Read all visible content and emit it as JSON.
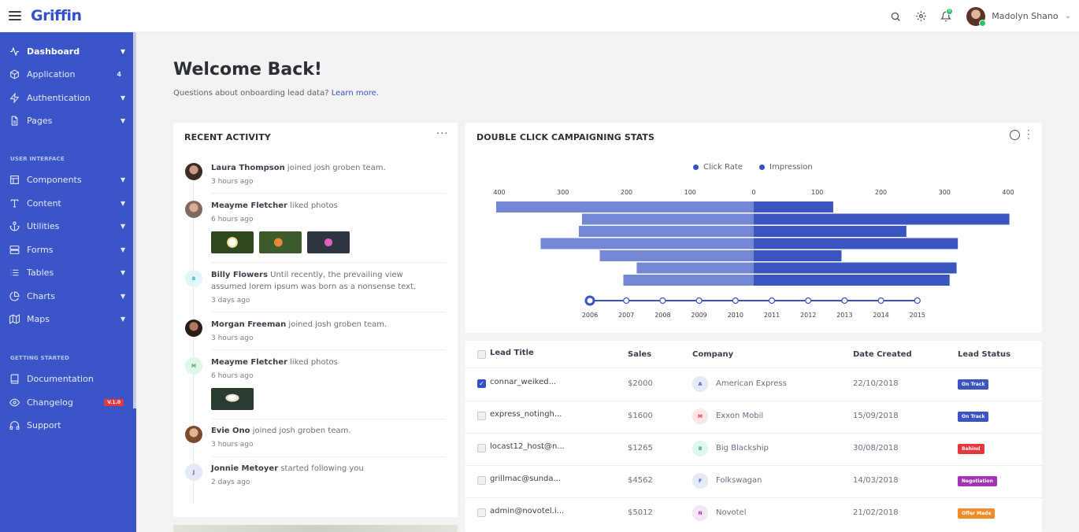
{
  "brand": "Griffin",
  "header": {
    "user_name": "Madolyn Shano",
    "notification_count": "0"
  },
  "sidebar": {
    "items_main": [
      {
        "label": "Dashboard",
        "icon": "activity-icon",
        "badge": ""
      },
      {
        "label": "Application",
        "icon": "box-icon",
        "badge": "4"
      },
      {
        "label": "Authentication",
        "icon": "zap-icon",
        "badge": ""
      },
      {
        "label": "Pages",
        "icon": "file-icon",
        "badge": ""
      }
    ],
    "section_ui": "USER INTERFACE",
    "items_ui": [
      {
        "label": "Components",
        "icon": "layout-icon"
      },
      {
        "label": "Content",
        "icon": "type-icon"
      },
      {
        "label": "Utilities",
        "icon": "anchor-icon"
      },
      {
        "label": "Forms",
        "icon": "server-icon"
      },
      {
        "label": "Tables",
        "icon": "list-icon"
      },
      {
        "label": "Charts",
        "icon": "pie-chart-icon"
      },
      {
        "label": "Maps",
        "icon": "map-icon"
      }
    ],
    "section_start": "GETTING STARTED",
    "items_start": [
      {
        "label": "Documentation",
        "icon": "book-icon",
        "badge": ""
      },
      {
        "label": "Changelog",
        "icon": "eye-icon",
        "badge": "V.1.0"
      },
      {
        "label": "Support",
        "icon": "headphones-icon",
        "badge": ""
      }
    ]
  },
  "main": {
    "title": "Welcome Back!",
    "subtitle": "Questions about onboarding lead data?",
    "subtitle_link": "Learn more."
  },
  "activity": {
    "title": "RECENT ACTIVITY",
    "items": [
      {
        "name": "Laura Thompson",
        "action": "joined josh groben team.",
        "time": "3 hours ago",
        "initial": ""
      },
      {
        "name": "Meayme Fletcher",
        "action": "liked photos",
        "time": "6 hours ago",
        "initial": ""
      },
      {
        "name": "Billy Flowers",
        "action": "Until recently, the prevailing view assumed lorem ipsum was born as a nonsense text.",
        "time": "3 days ago",
        "initial": "B"
      },
      {
        "name": "Morgan Freeman",
        "action": "joined josh groben team.",
        "time": "3 hours ago",
        "initial": ""
      },
      {
        "name": "Meayme Fletcher",
        "action": "liked photos",
        "time": "6 hours ago",
        "initial": "M"
      },
      {
        "name": "Evie Ono",
        "action": "joined josh groben team.",
        "time": "3 hours ago",
        "initial": ""
      },
      {
        "name": "Jonnie Metoyer",
        "action": "started following you",
        "time": "2 days ago",
        "initial": "J"
      }
    ]
  },
  "stats": {
    "title": "DOUBLE CLICK CAMPAIGNING STATS"
  },
  "chart_data": {
    "type": "bar",
    "orientation": "horizontal-butterfly",
    "legend": [
      "Click Rate",
      "Impression"
    ],
    "legend_position": "top-center",
    "ticks_left": [
      "400",
      "300",
      "200",
      "100",
      "0"
    ],
    "ticks_right": [
      "100",
      "200",
      "300",
      "400"
    ],
    "xlim": [
      0,
      400
    ],
    "series": [
      {
        "name": "Click Rate",
        "values": [
          405,
          270,
          275,
          335,
          242,
          184,
          205
        ]
      },
      {
        "name": "Impression",
        "values": [
          125,
          402,
          240,
          321,
          138,
          319,
          308
        ]
      }
    ],
    "timeline": [
      "2006",
      "2007",
      "2008",
      "2009",
      "2010",
      "2011",
      "2012",
      "2013",
      "2014",
      "2015"
    ],
    "timeline_selected": "2006",
    "colors": {
      "click_rate": "#7487d4",
      "impression": "#3a55c0"
    }
  },
  "table": {
    "columns": [
      "Lead Title",
      "Sales",
      "Company",
      "Date Created",
      "Lead Status"
    ],
    "rows": [
      {
        "title": "connar_weiked...",
        "sales": "$2000",
        "company": "American Express",
        "initial": "A",
        "date": "22/10/2018",
        "status": "On Track",
        "status_color": "#3a55c0",
        "checked": true,
        "avatar_bg": "#e6e9f6",
        "avatar_fg": "#3a55c0"
      },
      {
        "title": "express_notingh...",
        "sales": "$1600",
        "company": "Exxon Mobil",
        "initial": "M",
        "date": "15/09/2018",
        "status": "On Track",
        "status_color": "#3a55c0",
        "checked": false,
        "avatar_bg": "#fde6e6",
        "avatar_fg": "#e5383b"
      },
      {
        "title": "locast12_host@n...",
        "sales": "$1265",
        "company": "Big Blackship",
        "initial": "B",
        "date": "30/08/2018",
        "status": "Behind",
        "status_color": "#e5383b",
        "checked": false,
        "avatar_bg": "#e0f6ef",
        "avatar_fg": "#1ea77a"
      },
      {
        "title": "grillmac@sunda...",
        "sales": "$4562",
        "company": "Folkswagan",
        "initial": "F",
        "date": "14/03/2018",
        "status": "Negotiation",
        "status_color": "#a233b8",
        "checked": false,
        "avatar_bg": "#e6e9f6",
        "avatar_fg": "#3a55c0"
      },
      {
        "title": "admin@novotel.i...",
        "sales": "$5012",
        "company": "Novotel",
        "initial": "N",
        "date": "21/02/2018",
        "status": "Offer Made",
        "status_color": "#f28c28",
        "checked": false,
        "avatar_bg": "#f3e6f6",
        "avatar_fg": "#a233b8"
      }
    ]
  }
}
